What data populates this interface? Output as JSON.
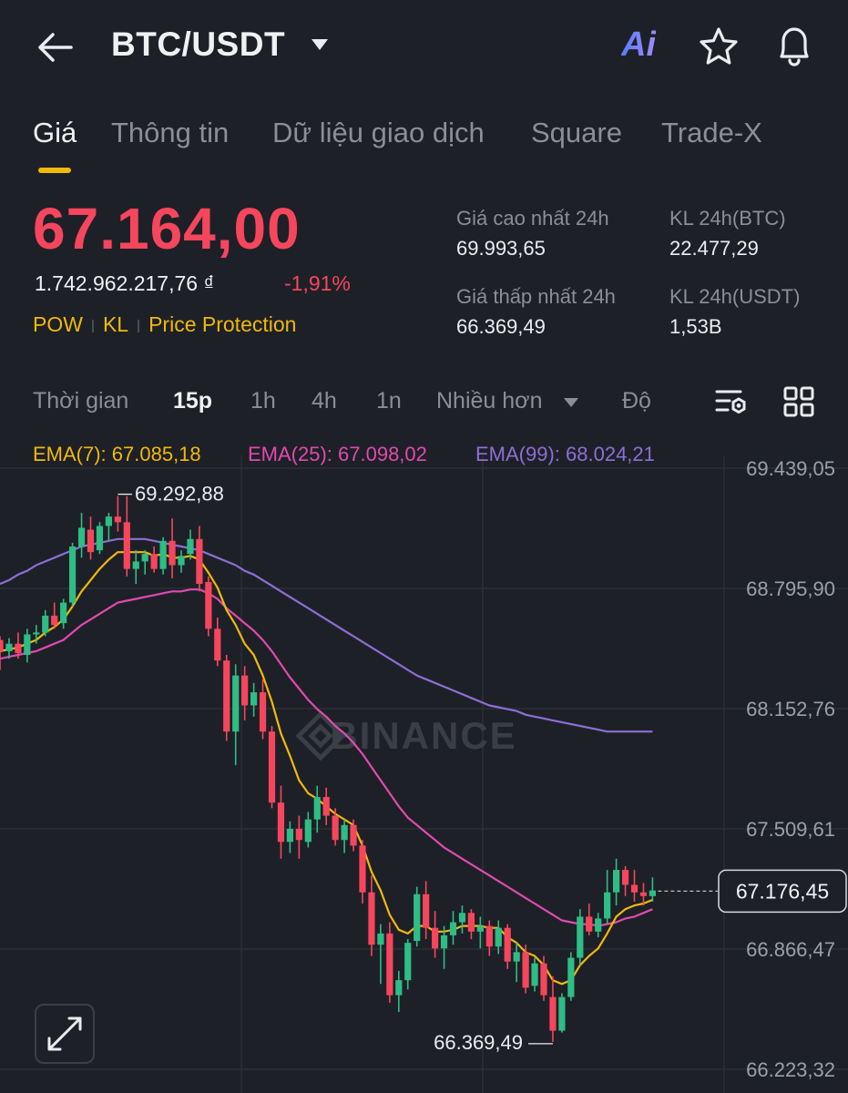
{
  "header": {
    "pair": "BTC/USDT",
    "ai_label": "Ai",
    "icons": [
      "back-arrow-icon",
      "caret-down-icon",
      "star-icon",
      "bell-icon"
    ]
  },
  "tabs": [
    {
      "label": "Giá",
      "active": true
    },
    {
      "label": "Thông tin"
    },
    {
      "label": "Dữ liệu giao dịch"
    },
    {
      "label": "Square"
    },
    {
      "label": "Trade-X"
    }
  ],
  "ticker": {
    "last_price": "67.164,00",
    "fiat_price": "1.742.962.217,76 ₫",
    "change": "-1,91%",
    "tags": [
      "POW",
      "KL",
      "Price Protection"
    ],
    "high_label": "Giá cao nhất 24h",
    "high_value": "69.993,65",
    "low_label": "Giá thấp nhất 24h",
    "low_value": "66.369,49",
    "vol_btc_label": "KL 24h(BTC)",
    "vol_btc_value": "22.477,29",
    "vol_usdt_label": "KL 24h(USDT)",
    "vol_usdt_value": "1,53B"
  },
  "intervals": {
    "time_label": "Thời gian",
    "options": [
      "15p",
      "1h",
      "4h",
      "1n"
    ],
    "selected": "15p",
    "more_label": "Nhiều hơn",
    "depth_label": "Độ"
  },
  "indicators": {
    "ema7": "EMA(7): 67.085,18",
    "ema25": "EMA(25): 67.098,02",
    "ema99": "EMA(99): 68.024,21"
  },
  "colors": {
    "up": "#2ebd85",
    "down": "#f6465d",
    "ema7": "#f0b90b",
    "ema25": "#e04ab0",
    "ema99": "#8c6fd6",
    "accent": "#f0b90b"
  },
  "chart_data": {
    "type": "candlestick",
    "watermark": "BINANCE",
    "y_ticks": [
      69439.05,
      68795.9,
      68152.76,
      67509.61,
      66866.47,
      66223.32
    ],
    "y_tick_labels": [
      "69.439,05",
      "68.795,90",
      "68.152,76",
      "67.509,61",
      "66.866,47",
      "66.223,32"
    ],
    "high_marker": "69.292,88",
    "low_marker": "66.369,49",
    "current_price_label": "67.176,45",
    "current_price": 67176.45,
    "candles": [
      [
        68520,
        68540,
        68360,
        68460
      ],
      [
        68460,
        68530,
        68420,
        68500
      ],
      [
        68500,
        68560,
        68420,
        68450
      ],
      [
        68440,
        68580,
        68400,
        68550
      ],
      [
        68550,
        68600,
        68500,
        68560
      ],
      [
        68560,
        68680,
        68540,
        68650
      ],
      [
        68650,
        68720,
        68580,
        68600
      ],
      [
        68610,
        68740,
        68580,
        68720
      ],
      [
        68720,
        69040,
        68700,
        69020
      ],
      [
        69020,
        69200,
        68960,
        69120
      ],
      [
        69110,
        69180,
        68950,
        68990
      ],
      [
        69000,
        69150,
        68980,
        69130
      ],
      [
        69130,
        69200,
        69050,
        69180
      ],
      [
        69180,
        69290,
        69100,
        69150
      ],
      [
        69150,
        69290,
        68860,
        68900
      ],
      [
        68900,
        69000,
        68820,
        68940
      ],
      [
        68940,
        69000,
        68870,
        68980
      ],
      [
        68980,
        69020,
        68880,
        68900
      ],
      [
        68900,
        69070,
        68870,
        69050
      ],
      [
        69050,
        69170,
        68850,
        68920
      ],
      [
        68920,
        69000,
        68880,
        68970
      ],
      [
        68980,
        69110,
        68950,
        69060
      ],
      [
        69060,
        69130,
        68780,
        68820
      ],
      [
        68830,
        68860,
        68540,
        68580
      ],
      [
        68580,
        68640,
        68380,
        68410
      ],
      [
        68410,
        68440,
        67980,
        68030
      ],
      [
        68030,
        68390,
        67850,
        68330
      ],
      [
        68330,
        68380,
        68090,
        68170
      ],
      [
        68170,
        68290,
        68110,
        68240
      ],
      [
        68240,
        68310,
        67990,
        68030
      ],
      [
        68030,
        68060,
        67620,
        67650
      ],
      [
        67650,
        67740,
        67350,
        67440
      ],
      [
        67440,
        67550,
        67380,
        67510
      ],
      [
        67510,
        67580,
        67350,
        67450
      ],
      [
        67440,
        67600,
        67410,
        67560
      ],
      [
        67560,
        67740,
        67490,
        67680
      ],
      [
        67680,
        67730,
        67530,
        67580
      ],
      [
        67580,
        67620,
        67420,
        67450
      ],
      [
        67450,
        67560,
        67380,
        67530
      ],
      [
        67530,
        67560,
        67390,
        67420
      ],
      [
        67420,
        67450,
        67110,
        67170
      ],
      [
        67170,
        67260,
        66830,
        66890
      ],
      [
        66890,
        67000,
        66680,
        66950
      ],
      [
        66950,
        67010,
        66580,
        66620
      ],
      [
        66620,
        66750,
        66530,
        66700
      ],
      [
        66700,
        66920,
        66650,
        66900
      ],
      [
        66910,
        67200,
        66880,
        67160
      ],
      [
        67160,
        67230,
        66920,
        66980
      ],
      [
        66980,
        67070,
        66820,
        66870
      ],
      [
        66870,
        66990,
        66760,
        66940
      ],
      [
        66940,
        67070,
        66890,
        67010
      ],
      [
        67010,
        67100,
        66950,
        67060
      ],
      [
        67060,
        67080,
        66920,
        66960
      ],
      [
        66960,
        67040,
        66870,
        66990
      ],
      [
        66990,
        67020,
        66830,
        66880
      ],
      [
        66880,
        67020,
        66840,
        66980
      ],
      [
        66980,
        67000,
        66760,
        66800
      ],
      [
        66800,
        66900,
        66690,
        66850
      ],
      [
        66850,
        66890,
        66630,
        66660
      ],
      [
        66670,
        66820,
        66640,
        66790
      ],
      [
        66790,
        66830,
        66590,
        66620
      ],
      [
        66610,
        66720,
        66370,
        66430
      ],
      [
        66430,
        66630,
        66420,
        66610
      ],
      [
        66610,
        66850,
        66590,
        66820
      ],
      [
        66820,
        67080,
        66780,
        67040
      ],
      [
        67040,
        67110,
        66940,
        66960
      ],
      [
        66960,
        67060,
        66930,
        67030
      ],
      [
        67030,
        67290,
        67000,
        67170
      ],
      [
        67170,
        67350,
        67100,
        67290
      ],
      [
        67290,
        67310,
        67150,
        67210
      ],
      [
        67210,
        67290,
        67120,
        67170
      ],
      [
        67170,
        67220,
        67100,
        67150
      ],
      [
        67150,
        67250,
        67120,
        67180
      ]
    ],
    "ema7_approx": [
      68460,
      68470,
      68480,
      68500,
      68520,
      68560,
      68590,
      68630,
      68700,
      68780,
      68840,
      68900,
      68950,
      68990,
      68990,
      68990,
      68990,
      68970,
      68980,
      68960,
      68960,
      68970,
      68950,
      68880,
      68800,
      68680,
      68600,
      68500,
      68440,
      68330,
      68190,
      68020,
      67900,
      67770,
      67700,
      67670,
      67630,
      67590,
      67560,
      67530,
      67420,
      67280,
      67180,
      67050,
      66970,
      66950,
      66990,
      66990,
      66960,
      66960,
      66970,
      66990,
      66990,
      66990,
      66980,
      66980,
      66930,
      66900,
      66850,
      66830,
      66780,
      66700,
      66680,
      66700,
      66780,
      66830,
      66870,
      66950,
      67040,
      67080,
      67100,
      67110,
      67130
    ],
    "ema25_approx": [
      68420,
      68430,
      68440,
      68450,
      68460,
      68480,
      68500,
      68520,
      68560,
      68600,
      68630,
      68660,
      68690,
      68720,
      68730,
      68740,
      68750,
      68760,
      68770,
      68780,
      68780,
      68790,
      68790,
      68770,
      68740,
      68690,
      68650,
      68610,
      68570,
      68520,
      68460,
      68390,
      68320,
      68260,
      68200,
      68150,
      68110,
      68060,
      68020,
      67970,
      67910,
      67840,
      67770,
      67700,
      67630,
      67570,
      67530,
      67490,
      67450,
      67410,
      67380,
      67350,
      67320,
      67290,
      67260,
      67230,
      67200,
      67170,
      67140,
      67110,
      67080,
      67050,
      67020,
      67010,
      67000,
      67000,
      66990,
      67000,
      67010,
      67030,
      67040,
      67060,
      67080
    ],
    "ema99_approx": [
      68820,
      68840,
      68870,
      68890,
      68920,
      68940,
      68960,
      68980,
      69000,
      69020,
      69030,
      69040,
      69050,
      69060,
      69060,
      69060,
      69060,
      69050,
      69040,
      69030,
      69020,
      69010,
      69000,
      68980,
      68960,
      68940,
      68920,
      68890,
      68870,
      68840,
      68810,
      68780,
      68750,
      68720,
      68690,
      68660,
      68630,
      68600,
      68570,
      68540,
      68510,
      68480,
      68450,
      68420,
      68390,
      68360,
      68330,
      68310,
      68290,
      68270,
      68250,
      68230,
      68210,
      68190,
      68170,
      68160,
      68150,
      68140,
      68120,
      68110,
      68100,
      68090,
      68080,
      68070,
      68060,
      68050,
      68040,
      68030,
      68030,
      68030,
      68030,
      68030,
      68030
    ]
  }
}
